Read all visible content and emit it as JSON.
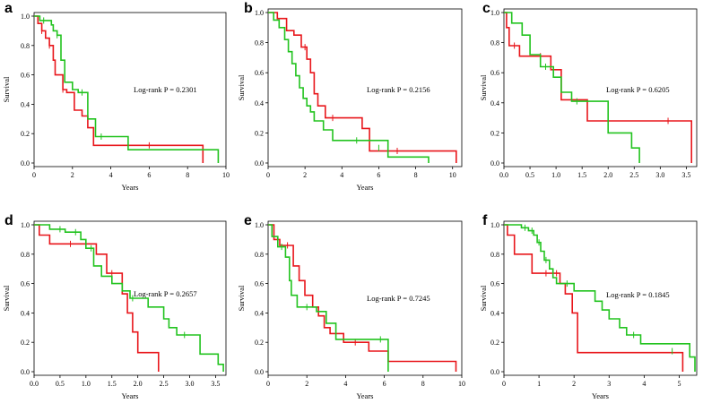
{
  "colors": {
    "red": "#e8161b",
    "green": "#22c31f",
    "axis": "#000000"
  },
  "chart_data": [
    {
      "type": "line",
      "letter": "a",
      "xlabel": "Years",
      "ylabel": "Survival",
      "annotation": "Log-rank P = 0.2301",
      "xlim": [
        0,
        10
      ],
      "ylim": [
        0,
        1.0
      ],
      "xticks": [
        0,
        2,
        4,
        6,
        8,
        10
      ],
      "xtick_labels": [
        "0",
        "2",
        "4",
        "6",
        "8",
        "10"
      ],
      "yticks": [
        0,
        0.2,
        0.4,
        0.6,
        0.8,
        1.0
      ],
      "ytick_labels": [
        "0.0",
        "0.2",
        "0.4",
        "0.6",
        "0.8",
        "1.0"
      ],
      "series": [
        {
          "name": "red",
          "color_key": "red",
          "x": [
            0,
            0.2,
            0.4,
            0.6,
            0.8,
            1.0,
            1.1,
            1.5,
            1.7,
            2.1,
            2.5,
            2.8,
            3.1,
            8.8
          ],
          "y": [
            1.0,
            0.95,
            0.9,
            0.85,
            0.8,
            0.7,
            0.6,
            0.5,
            0.48,
            0.36,
            0.32,
            0.24,
            0.12,
            0
          ],
          "censor": [
            [
              0.4,
              0.9
            ],
            [
              0.8,
              0.8
            ],
            [
              1.5,
              0.5
            ],
            [
              6.0,
              0.12
            ]
          ]
        },
        {
          "name": "green",
          "color_key": "green",
          "x": [
            0,
            0.3,
            0.9,
            1.0,
            1.2,
            1.4,
            1.6,
            2.0,
            2.3,
            2.8,
            3.2,
            4.9,
            9.6
          ],
          "y": [
            1.0,
            0.97,
            0.94,
            0.9,
            0.87,
            0.7,
            0.55,
            0.5,
            0.48,
            0.3,
            0.18,
            0.09,
            0
          ],
          "censor": [
            [
              0.5,
              0.97
            ],
            [
              1.2,
              0.87
            ],
            [
              2.5,
              0.48
            ],
            [
              3.5,
              0.18
            ]
          ]
        }
      ]
    },
    {
      "type": "line",
      "letter": "b",
      "xlabel": "Years",
      "ylabel": "Survival",
      "annotation": "Log-rank P = 0.2156",
      "xlim": [
        0,
        10.5
      ],
      "ylim": [
        0,
        1.0
      ],
      "xticks": [
        0,
        2,
        4,
        6,
        8,
        10
      ],
      "xtick_labels": [
        "0",
        "2",
        "4",
        "6",
        "8",
        "10"
      ],
      "yticks": [
        0,
        0.2,
        0.4,
        0.6,
        0.8,
        1.0
      ],
      "ytick_labels": [
        "0.0",
        "0.2",
        "0.4",
        "0.6",
        "0.8",
        "1.0"
      ],
      "series": [
        {
          "name": "red",
          "color_key": "red",
          "x": [
            0,
            0.5,
            1.0,
            1.4,
            1.8,
            2.1,
            2.3,
            2.5,
            2.7,
            3.1,
            5.1,
            5.5,
            10.2
          ],
          "y": [
            1.0,
            0.96,
            0.88,
            0.85,
            0.77,
            0.69,
            0.6,
            0.46,
            0.38,
            0.3,
            0.23,
            0.08,
            0
          ],
          "censor": [
            [
              2.0,
              0.77
            ],
            [
              3.5,
              0.3
            ],
            [
              7.0,
              0.08
            ]
          ]
        },
        {
          "name": "green",
          "color_key": "green",
          "x": [
            0,
            0.3,
            0.6,
            0.9,
            1.1,
            1.3,
            1.5,
            1.7,
            1.9,
            2.1,
            2.3,
            2.5,
            3.0,
            3.5,
            6.5,
            8.7
          ],
          "y": [
            1.0,
            0.95,
            0.9,
            0.82,
            0.74,
            0.66,
            0.58,
            0.5,
            0.43,
            0.38,
            0.34,
            0.28,
            0.22,
            0.15,
            0.04,
            0
          ],
          "censor": [
            [
              4.8,
              0.15
            ],
            [
              6.0,
              0.1
            ]
          ]
        }
      ]
    },
    {
      "type": "line",
      "letter": "c",
      "xlabel": "",
      "ylabel": "Survival",
      "annotation": "Log-rank P = 0.6205",
      "xlim": [
        0,
        3.7
      ],
      "ylim": [
        0,
        1.0
      ],
      "xticks": [
        0,
        0.5,
        1.0,
        1.5,
        2.0,
        2.5,
        3.0,
        3.5
      ],
      "xtick_labels": [
        "0.0",
        "0.5",
        "1.0",
        "1.5",
        "2.0",
        "2.5",
        "3.0",
        "3.5"
      ],
      "yticks": [
        0,
        0.2,
        0.4,
        0.6,
        0.8,
        1.0
      ],
      "ytick_labels": [
        "0.0",
        "0.2",
        "0.4",
        "0.6",
        "0.8",
        "1.0"
      ],
      "series": [
        {
          "name": "red",
          "color_key": "red",
          "x": [
            0,
            0.05,
            0.1,
            0.3,
            0.9,
            1.1,
            1.6,
            3.6
          ],
          "y": [
            1.0,
            0.9,
            0.78,
            0.71,
            0.62,
            0.42,
            0.28,
            0
          ],
          "censor": [
            [
              0.2,
              0.78
            ],
            [
              0.7,
              0.71
            ],
            [
              3.15,
              0.28
            ]
          ]
        },
        {
          "name": "green",
          "color_key": "green",
          "x": [
            0,
            0.15,
            0.35,
            0.5,
            0.7,
            0.95,
            1.1,
            1.3,
            2.0,
            2.45,
            2.6
          ],
          "y": [
            1.0,
            0.93,
            0.85,
            0.72,
            0.64,
            0.57,
            0.47,
            0.41,
            0.2,
            0.1,
            0
          ],
          "censor": [
            [
              0.8,
              0.64
            ],
            [
              1.4,
              0.41
            ]
          ]
        }
      ]
    },
    {
      "type": "line",
      "letter": "d",
      "xlabel": "Years",
      "ylabel": "Survival",
      "annotation": "Log-rank P = 0.2657",
      "xlim": [
        0,
        3.7
      ],
      "ylim": [
        0,
        1.0
      ],
      "xticks": [
        0,
        0.5,
        1.0,
        1.5,
        2.0,
        2.5,
        3.0,
        3.5
      ],
      "xtick_labels": [
        "0.0",
        "0.5",
        "1.0",
        "1.5",
        "2.0",
        "2.5",
        "3.0",
        "3.5"
      ],
      "yticks": [
        0,
        0.2,
        0.4,
        0.6,
        0.8,
        1.0
      ],
      "ytick_labels": [
        "0.0",
        "0.2",
        "0.4",
        "0.6",
        "0.8",
        "1.0"
      ],
      "series": [
        {
          "name": "red",
          "color_key": "red",
          "x": [
            0,
            0.1,
            0.3,
            1.2,
            1.4,
            1.7,
            1.8,
            1.9,
            2.0,
            2.4
          ],
          "y": [
            1.0,
            0.93,
            0.87,
            0.8,
            0.67,
            0.53,
            0.4,
            0.27,
            0.13,
            0
          ],
          "censor": [
            [
              0.7,
              0.87
            ],
            [
              1.5,
              0.67
            ]
          ]
        },
        {
          "name": "green",
          "color_key": "green",
          "x": [
            0,
            0.3,
            0.6,
            0.9,
            1.0,
            1.15,
            1.3,
            1.5,
            1.7,
            1.85,
            2.2,
            2.5,
            2.6,
            2.75,
            3.2,
            3.55,
            3.65
          ],
          "y": [
            1.0,
            0.97,
            0.95,
            0.9,
            0.84,
            0.72,
            0.65,
            0.6,
            0.55,
            0.5,
            0.44,
            0.36,
            0.3,
            0.25,
            0.12,
            0.05,
            0
          ],
          "censor": [
            [
              0.5,
              0.97
            ],
            [
              0.8,
              0.95
            ],
            [
              1.1,
              0.84
            ],
            [
              1.9,
              0.5
            ],
            [
              2.9,
              0.25
            ]
          ]
        }
      ]
    },
    {
      "type": "line",
      "letter": "e",
      "xlabel": "Years",
      "ylabel": "Survival",
      "annotation": "Log-rank P = 0.7245",
      "xlim": [
        0,
        10
      ],
      "ylim": [
        0,
        1.0
      ],
      "xticks": [
        0,
        2,
        4,
        6,
        8,
        10
      ],
      "xtick_labels": [
        "0",
        "2",
        "4",
        "6",
        "8",
        "10"
      ],
      "yticks": [
        0,
        0.2,
        0.4,
        0.6,
        0.8,
        1.0
      ],
      "ytick_labels": [
        "0.0",
        "0.2",
        "0.4",
        "0.6",
        "0.8",
        "1.0"
      ],
      "series": [
        {
          "name": "red",
          "color_key": "red",
          "x": [
            0,
            0.3,
            0.6,
            1.3,
            1.6,
            1.9,
            2.3,
            2.6,
            2.9,
            3.2,
            3.9,
            5.2,
            6.2,
            9.7
          ],
          "y": [
            1.0,
            0.9,
            0.86,
            0.72,
            0.62,
            0.52,
            0.44,
            0.38,
            0.3,
            0.26,
            0.2,
            0.14,
            0.07,
            0
          ],
          "censor": [
            [
              1.0,
              0.86
            ],
            [
              4.5,
              0.2
            ]
          ]
        },
        {
          "name": "green",
          "color_key": "green",
          "x": [
            0,
            0.2,
            0.5,
            0.9,
            1.1,
            1.2,
            1.5,
            2.5,
            3.0,
            3.5,
            6.1,
            6.2
          ],
          "y": [
            1.0,
            0.92,
            0.85,
            0.78,
            0.62,
            0.52,
            0.44,
            0.41,
            0.33,
            0.22,
            0.22,
            0
          ],
          "censor": [
            [
              0.7,
              0.85
            ],
            [
              2.0,
              0.44
            ],
            [
              5.8,
              0.22
            ]
          ]
        }
      ]
    },
    {
      "type": "line",
      "letter": "f",
      "xlabel": "Years",
      "ylabel": "Survival",
      "annotation": "Log-rank P = 0.1845",
      "xlim": [
        0,
        5.5
      ],
      "ylim": [
        0,
        1.0
      ],
      "xticks": [
        0,
        1,
        2,
        3,
        4,
        5
      ],
      "xtick_labels": [
        "0",
        "1",
        "2",
        "3",
        "4",
        "5"
      ],
      "yticks": [
        0,
        0.2,
        0.4,
        0.6,
        0.8,
        1.0
      ],
      "ytick_labels": [
        "0.0",
        "0.2",
        "0.4",
        "0.6",
        "0.8",
        "1.0"
      ],
      "series": [
        {
          "name": "red",
          "color_key": "red",
          "x": [
            0,
            0.1,
            0.3,
            0.8,
            1.6,
            1.75,
            1.95,
            2.1,
            5.1
          ],
          "y": [
            1.0,
            0.93,
            0.8,
            0.67,
            0.6,
            0.53,
            0.4,
            0.13,
            0
          ],
          "censor": [
            [
              1.2,
              0.67
            ],
            [
              1.5,
              0.67
            ]
          ]
        },
        {
          "name": "green",
          "color_key": "green",
          "x": [
            0,
            0.5,
            0.7,
            0.85,
            0.95,
            1.05,
            1.15,
            1.3,
            1.4,
            1.5,
            2.0,
            2.6,
            2.8,
            3.0,
            3.3,
            3.5,
            3.9,
            5.3,
            5.45
          ],
          "y": [
            1.0,
            0.98,
            0.96,
            0.93,
            0.88,
            0.82,
            0.76,
            0.7,
            0.64,
            0.6,
            0.55,
            0.48,
            0.42,
            0.36,
            0.3,
            0.25,
            0.19,
            0.1,
            0
          ],
          "censor": [
            [
              0.6,
              0.98
            ],
            [
              0.8,
              0.96
            ],
            [
              1.0,
              0.88
            ],
            [
              1.2,
              0.76
            ],
            [
              1.8,
              0.6
            ],
            [
              3.7,
              0.25
            ],
            [
              4.8,
              0.14
            ]
          ]
        }
      ]
    }
  ]
}
